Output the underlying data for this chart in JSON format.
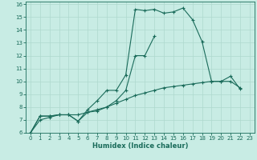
{
  "xlabel": "Humidex (Indice chaleur)",
  "xlim": [
    -0.5,
    23.5
  ],
  "ylim": [
    6,
    16.2
  ],
  "xticks": [
    0,
    1,
    2,
    3,
    4,
    5,
    6,
    7,
    8,
    9,
    10,
    11,
    12,
    13,
    14,
    15,
    16,
    17,
    18,
    19,
    20,
    21,
    22,
    23
  ],
  "yticks": [
    6,
    7,
    8,
    9,
    10,
    11,
    12,
    13,
    14,
    15,
    16
  ],
  "bg_color": "#c8ece4",
  "grid_color": "#aed8ce",
  "line_color": "#1a6b5a",
  "line1_x": [
    0,
    1,
    2,
    3,
    4,
    5,
    6,
    7,
    8,
    9,
    10,
    11,
    12,
    13,
    14,
    15,
    16,
    17,
    18,
    19,
    20,
    21,
    22
  ],
  "line1_y": [
    6.0,
    7.3,
    7.3,
    7.4,
    7.4,
    6.9,
    7.8,
    8.5,
    9.3,
    9.3,
    10.5,
    15.6,
    15.5,
    15.6,
    15.3,
    15.4,
    15.7,
    14.8,
    13.1,
    10.0,
    10.0,
    10.4,
    9.4
  ],
  "line2_x": [
    0,
    1,
    2,
    3,
    4,
    5,
    6,
    7,
    8,
    9,
    10,
    11,
    12,
    13
  ],
  "line2_y": [
    6.0,
    7.3,
    7.3,
    7.4,
    7.4,
    6.9,
    7.6,
    7.7,
    8.0,
    8.5,
    9.3,
    12.0,
    12.0,
    13.5
  ],
  "line3_x": [
    0,
    1,
    2,
    3,
    4,
    5,
    6,
    7,
    8,
    9,
    10,
    11,
    12,
    13,
    14,
    15,
    16,
    17,
    18,
    19,
    20,
    21,
    22
  ],
  "line3_y": [
    6.0,
    7.0,
    7.2,
    7.4,
    7.4,
    7.4,
    7.6,
    7.8,
    8.0,
    8.3,
    8.6,
    8.9,
    9.1,
    9.3,
    9.5,
    9.6,
    9.7,
    9.8,
    9.9,
    10.0,
    10.0,
    10.0,
    9.5
  ]
}
